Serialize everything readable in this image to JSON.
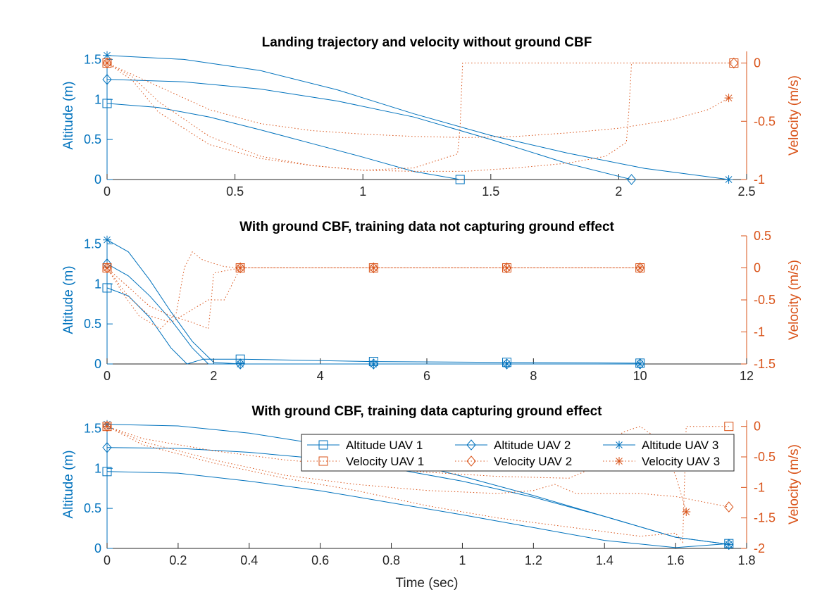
{
  "colors": {
    "altitude": "#0072BD",
    "velocity": "#D95319",
    "axis": "#262626"
  },
  "chart_data": [
    {
      "type": "line",
      "title": "Landing trajectory and velocity without ground CBF",
      "xlabel": "",
      "ylabel": "Altitude (m)",
      "y2label": "Velocity (m/s)",
      "xlim": [
        0,
        2.5
      ],
      "ylim": [
        0,
        1.6
      ],
      "y2lim": [
        -1,
        0.1
      ],
      "xticks": [
        "0",
        "0.5",
        "1",
        "1.5",
        "2",
        "2.5"
      ],
      "yticks": [
        "0",
        "0.5",
        "1",
        "1.5"
      ],
      "y2ticks": [
        "-1",
        "-0.5",
        "0"
      ],
      "series": [
        {
          "name": "Altitude UAV 1",
          "axis": "left",
          "marker": "square",
          "x": [
            0,
            0.2,
            0.4,
            0.6,
            0.8,
            1.0,
            1.2,
            1.38
          ],
          "y": [
            0.95,
            0.9,
            0.78,
            0.62,
            0.45,
            0.28,
            0.1,
            0.0
          ]
        },
        {
          "name": "Altitude UAV 2",
          "axis": "left",
          "marker": "diamond",
          "x": [
            0,
            0.3,
            0.6,
            0.9,
            1.2,
            1.5,
            1.8,
            2.05
          ],
          "y": [
            1.25,
            1.22,
            1.13,
            0.98,
            0.78,
            0.5,
            0.2,
            0.0
          ]
        },
        {
          "name": "Altitude UAV 3",
          "axis": "left",
          "marker": "asterisk",
          "x": [
            0,
            0.3,
            0.6,
            0.9,
            1.2,
            1.5,
            1.8,
            2.1,
            2.43
          ],
          "y": [
            1.55,
            1.5,
            1.36,
            1.12,
            0.82,
            0.55,
            0.33,
            0.14,
            0.0
          ]
        },
        {
          "name": "Velocity UAV 1",
          "axis": "right",
          "marker": "square",
          "x": [
            0,
            0.1,
            0.2,
            0.4,
            0.6,
            0.8,
            1.0,
            1.2,
            1.37,
            1.38,
            1.39,
            2.45
          ],
          "y": [
            0,
            -0.15,
            -0.42,
            -0.7,
            -0.82,
            -0.88,
            -0.92,
            -0.9,
            -0.78,
            -0.55,
            0,
            0
          ]
        },
        {
          "name": "Velocity UAV 2",
          "axis": "right",
          "marker": "diamond",
          "x": [
            0,
            0.1,
            0.2,
            0.4,
            0.6,
            0.8,
            1.0,
            1.2,
            1.4,
            1.6,
            1.8,
            1.95,
            2.03,
            2.04,
            2.05,
            2.45
          ],
          "y": [
            0,
            -0.12,
            -0.33,
            -0.63,
            -0.8,
            -0.88,
            -0.92,
            -0.93,
            -0.93,
            -0.9,
            -0.86,
            -0.8,
            -0.68,
            -0.4,
            0,
            0
          ]
        },
        {
          "name": "Velocity UAV 3",
          "axis": "right",
          "marker": "asterisk",
          "x": [
            0,
            0.2,
            0.4,
            0.6,
            0.8,
            1.0,
            1.2,
            1.4,
            1.6,
            1.8,
            2.0,
            2.2,
            2.35,
            2.43
          ],
          "y": [
            0,
            -0.2,
            -0.4,
            -0.52,
            -0.58,
            -0.61,
            -0.63,
            -0.64,
            -0.63,
            -0.6,
            -0.56,
            -0.49,
            -0.4,
            -0.3
          ]
        }
      ]
    },
    {
      "type": "line",
      "title": "With ground CBF, training data not capturing ground effect",
      "xlabel": "",
      "ylabel": "Altitude (m)",
      "y2label": "Velocity (m/s)",
      "xlim": [
        0,
        12
      ],
      "ylim": [
        0,
        1.6
      ],
      "y2lim": [
        -1.5,
        0.5
      ],
      "xticks": [
        "0",
        "2",
        "4",
        "6",
        "8",
        "10",
        "12"
      ],
      "yticks": [
        "0",
        "0.5",
        "1",
        "1.5"
      ],
      "y2ticks": [
        "-1.5",
        "-1",
        "-0.5",
        "0",
        "0.5"
      ],
      "series": [
        {
          "name": "Altitude UAV 1",
          "axis": "left",
          "marker": "square",
          "x": [
            0,
            0.4,
            0.8,
            1.2,
            1.5,
            1.8,
            2.5,
            5,
            7.5,
            10
          ],
          "y": [
            0.95,
            0.85,
            0.58,
            0.2,
            0.0,
            0.06,
            0.06,
            0.03,
            0.02,
            0.01
          ]
        },
        {
          "name": "Altitude UAV 2",
          "axis": "left",
          "marker": "diamond",
          "x": [
            0,
            0.4,
            0.8,
            1.2,
            1.6,
            1.9,
            2.5,
            5,
            7.5,
            10
          ],
          "y": [
            1.25,
            1.1,
            0.85,
            0.55,
            0.2,
            0.0,
            0.0,
            0.0,
            0.0,
            0.0
          ]
        },
        {
          "name": "Altitude UAV 3",
          "axis": "left",
          "marker": "asterisk",
          "x": [
            0,
            0.4,
            0.8,
            1.2,
            1.6,
            2.0,
            2.5,
            5,
            7.5,
            10
          ],
          "y": [
            1.55,
            1.4,
            1.05,
            0.65,
            0.28,
            0.02,
            0.0,
            0.0,
            0.0,
            0.0
          ]
        },
        {
          "name": "Velocity UAV 1",
          "axis": "right",
          "marker": "square",
          "x": [
            0,
            0.3,
            0.6,
            1.0,
            1.3,
            1.45,
            1.6,
            1.8,
            2.2,
            2.5,
            5,
            7.5,
            10
          ],
          "y": [
            0,
            -0.4,
            -0.75,
            -0.95,
            -0.7,
            0.0,
            0.25,
            0.12,
            0.02,
            0,
            0,
            0,
            0
          ]
        },
        {
          "name": "Velocity UAV 2",
          "axis": "right",
          "marker": "diamond",
          "x": [
            0,
            0.4,
            0.8,
            1.2,
            1.6,
            1.9,
            2.2,
            2.5,
            5,
            7.5,
            10
          ],
          "y": [
            0,
            -0.45,
            -0.75,
            -0.85,
            -0.65,
            -0.5,
            -0.5,
            0,
            0,
            0,
            0
          ]
        },
        {
          "name": "Velocity UAV 3",
          "axis": "right",
          "marker": "asterisk",
          "x": [
            0,
            0.4,
            0.8,
            1.2,
            1.6,
            1.9,
            1.95,
            2.0,
            2.5,
            5,
            7.5,
            10
          ],
          "y": [
            0,
            -0.3,
            -0.6,
            -0.75,
            -0.85,
            -0.95,
            -0.55,
            -0.08,
            0,
            0,
            0,
            0
          ]
        }
      ]
    },
    {
      "type": "line",
      "title": "With ground CBF, training data capturing ground effect",
      "xlabel": "Time (sec)",
      "ylabel": "Altitude (m)",
      "y2label": "Velocity (m/s)",
      "xlim": [
        0,
        1.8
      ],
      "ylim": [
        0,
        1.6
      ],
      "y2lim": [
        -2,
        0.1
      ],
      "xticks": [
        "0",
        "0.2",
        "0.4",
        "0.6",
        "0.8",
        "1",
        "1.2",
        "1.4",
        "1.6",
        "1.8"
      ],
      "yticks": [
        "0",
        "0.5",
        "1",
        "1.5"
      ],
      "y2ticks": [
        "-2",
        "-1.5",
        "-1",
        "-0.5",
        "0"
      ],
      "legend": {
        "position": "top-right",
        "entries": [
          "Altitude UAV 1",
          "Altitude UAV 2",
          "Altitude UAV 3",
          "Velocity UAV 1",
          "Velocity UAV 2",
          "Velocity UAV 3"
        ]
      },
      "series": [
        {
          "name": "Altitude UAV 1",
          "axis": "left",
          "marker": "square",
          "x": [
            0,
            0.2,
            0.4,
            0.6,
            0.8,
            1.0,
            1.2,
            1.4,
            1.6,
            1.75
          ],
          "y": [
            0.96,
            0.94,
            0.84,
            0.72,
            0.57,
            0.42,
            0.26,
            0.1,
            0.01,
            0.06
          ]
        },
        {
          "name": "Altitude UAV 2",
          "axis": "left",
          "marker": "diamond",
          "x": [
            0,
            0.2,
            0.4,
            0.6,
            0.8,
            1.0,
            1.2,
            1.4,
            1.6,
            1.75
          ],
          "y": [
            1.26,
            1.25,
            1.2,
            1.12,
            1.0,
            0.84,
            0.64,
            0.4,
            0.14,
            0.05
          ]
        },
        {
          "name": "Altitude UAV 3",
          "axis": "left",
          "marker": "asterisk",
          "x": [
            0,
            0.2,
            0.4,
            0.6,
            0.8,
            1.0,
            1.2,
            1.4,
            1.6,
            1.75
          ],
          "y": [
            1.55,
            1.53,
            1.44,
            1.3,
            1.12,
            0.9,
            0.66,
            0.4,
            0.14,
            0.05
          ]
        },
        {
          "name": "Velocity UAV 1",
          "axis": "right",
          "marker": "square",
          "x": [
            0,
            0.1,
            0.3,
            0.5,
            0.7,
            0.9,
            1.1,
            1.3,
            1.5,
            1.6,
            1.62,
            1.63,
            1.75
          ],
          "y": [
            0,
            -0.3,
            -0.6,
            -0.85,
            -1.05,
            -1.3,
            -1.5,
            -1.65,
            -1.8,
            -1.75,
            -1.9,
            0,
            0
          ]
        },
        {
          "name": "Velocity UAV 2",
          "axis": "right",
          "marker": "diamond",
          "x": [
            0,
            0.1,
            0.3,
            0.5,
            0.7,
            0.9,
            1.1,
            1.2,
            1.26,
            1.32,
            1.4,
            1.5,
            1.6,
            1.75
          ],
          "y": [
            0,
            -0.25,
            -0.55,
            -0.8,
            -0.95,
            -1.05,
            -1.1,
            -1.05,
            -0.95,
            -1.1,
            -1.1,
            -1.1,
            -1.15,
            -1.32
          ]
        },
        {
          "name": "Velocity UAV 3",
          "axis": "right",
          "marker": "asterisk",
          "x": [
            0,
            0.1,
            0.3,
            0.5,
            0.7,
            0.9,
            1.1,
            1.3,
            1.4,
            1.45,
            1.5,
            1.55,
            1.6,
            1.63
          ],
          "y": [
            0,
            -0.2,
            -0.4,
            -0.55,
            -0.65,
            -0.75,
            -0.82,
            -0.85,
            -0.6,
            -0.1,
            0.0,
            -0.2,
            -0.8,
            -1.4
          ]
        }
      ]
    }
  ]
}
